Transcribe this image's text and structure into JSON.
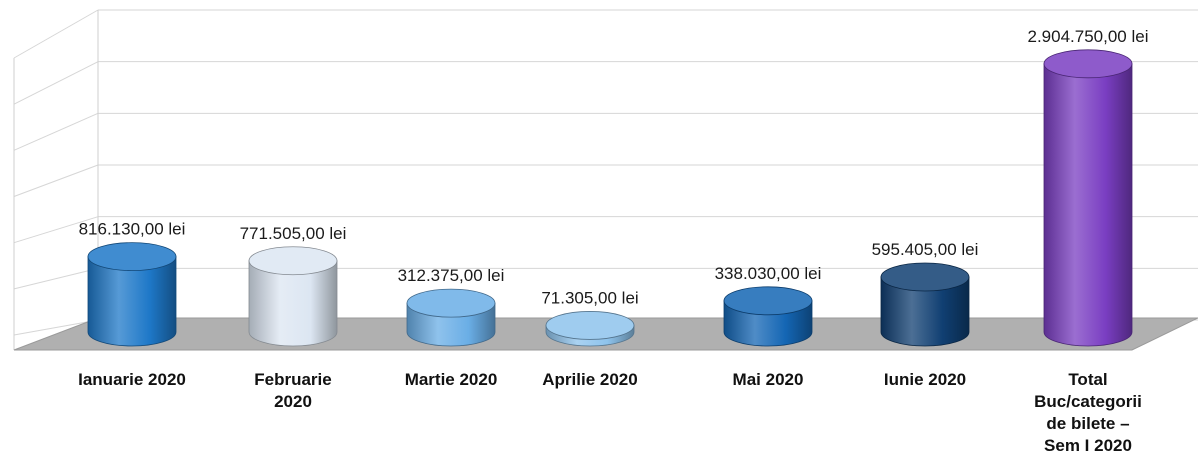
{
  "chart_data": {
    "type": "bar",
    "style": "3d-cylinder",
    "categories": [
      [
        "Ianuarie 2020"
      ],
      [
        "Februarie",
        "2020"
      ],
      [
        "Martie 2020"
      ],
      [
        "Aprilie 2020"
      ],
      [
        "Mai 2020"
      ],
      [
        "Iunie 2020"
      ],
      [
        "Total",
        "Buc/categorii",
        "de bilete –",
        "Sem I 2020"
      ]
    ],
    "values": [
      816130,
      771505,
      312375,
      71305,
      338030,
      595405,
      2904750
    ],
    "value_labels": [
      "816.130,00 lei",
      "771.505,00 lei",
      "312.375,00 lei",
      "71.305,00 lei",
      "338.030,00 lei",
      "595.405,00 lei",
      "2.904.750,00 lei"
    ],
    "colors": [
      "#1e78c8",
      "#dce6f2",
      "#6aaee6",
      "#8ec3ec",
      "#1466b4",
      "#103f72",
      "#7a3ec2"
    ],
    "ylim": [
      0,
      3000000
    ],
    "grid": true,
    "legend": "none"
  }
}
